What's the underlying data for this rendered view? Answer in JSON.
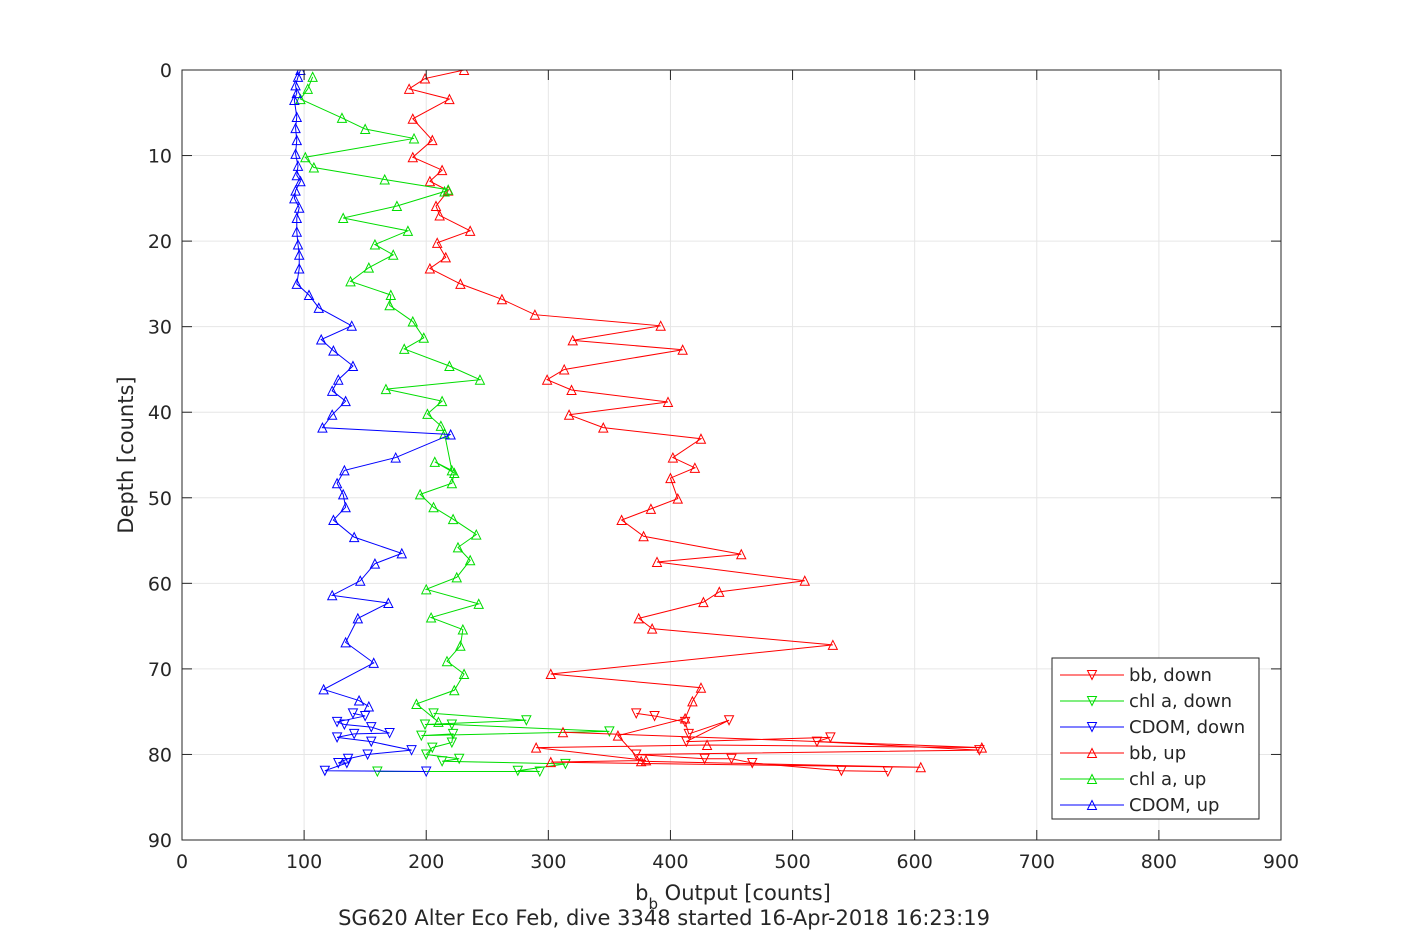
{
  "chart_data": {
    "type": "line",
    "title": "",
    "xlabel": "b_b Output [counts]",
    "xlabel_main": "b",
    "xlabel_sub": "b",
    "xlabel_rest": " Output [counts]",
    "ylabel": "Depth [counts]",
    "caption": "SG620 Alter Eco Feb, dive 3348 started 16-Apr-2018 16:23:19",
    "xlim": [
      0,
      900
    ],
    "ylim": [
      0,
      90
    ],
    "y_reversed": true,
    "grid": true,
    "legend_position": "bottom-right",
    "x_ticks": [
      "0",
      "100",
      "200",
      "300",
      "400",
      "500",
      "600",
      "700",
      "800",
      "900"
    ],
    "y_ticks": [
      "0",
      "10",
      "20",
      "30",
      "40",
      "50",
      "60",
      "70",
      "80",
      "90"
    ],
    "series": [
      {
        "name": "bb, down",
        "color": "#ff0000",
        "marker": "triangle-down",
        "x": [
          372,
          387,
          412,
          415,
          448,
          413,
          531,
          520,
          653,
          372,
          428,
          450,
          467,
          540,
          578
        ],
        "y": [
          75.2,
          75.5,
          76.2,
          77.6,
          76.0,
          78.5,
          78.0,
          78.5,
          79.5,
          80.0,
          80.5,
          80.5,
          81.0,
          81.9,
          82.0
        ]
      },
      {
        "name": "chl a, down",
        "color": "#00dd00",
        "marker": "triangle-down",
        "x": [
          206,
          282,
          199,
          221,
          350,
          196,
          222,
          221,
          205,
          200,
          227,
          213,
          314,
          275,
          293,
          160
        ],
        "y": [
          75.2,
          76.0,
          76.5,
          76.5,
          77.3,
          77.8,
          77.6,
          78.6,
          79.2,
          80.0,
          80.5,
          80.8,
          81.1,
          81.9,
          82.0,
          82.0
        ]
      },
      {
        "name": "CDOM, down",
        "color": "#0000ff",
        "marker": "triangle-down",
        "x": [
          140,
          150,
          127,
          133,
          155,
          170,
          141,
          127,
          155,
          188,
          152,
          136,
          128,
          135,
          117,
          200
        ],
        "y": [
          75.2,
          75.5,
          76.2,
          76.5,
          76.8,
          77.5,
          77.6,
          78.0,
          78.5,
          79.5,
          80.0,
          80.5,
          81.0,
          81.0,
          81.9,
          82.0
        ]
      },
      {
        "name": "bb, up",
        "color": "#ff0000",
        "marker": "triangle-up",
        "x": [
          231,
          199,
          186,
          219,
          189,
          205,
          189,
          213,
          203,
          218,
          208,
          211,
          236,
          209,
          216,
          203,
          228,
          262,
          289,
          392,
          320,
          410,
          313,
          299,
          319,
          398,
          317,
          345,
          425,
          402,
          420,
          400,
          406,
          384,
          360,
          378,
          458,
          389,
          510,
          440,
          427,
          374,
          385,
          533,
          302,
          425,
          418,
          412,
          357,
          376,
          605,
          302,
          380,
          290,
          430,
          655,
          312
        ],
        "y": [
          0,
          1.0,
          2.2,
          3.4,
          5.7,
          8.2,
          10.2,
          11.7,
          13.0,
          14.1,
          15.9,
          17.0,
          18.8,
          20.2,
          21.9,
          23.2,
          25.0,
          26.8,
          28.6,
          29.9,
          31.6,
          32.7,
          35.0,
          36.2,
          37.4,
          38.8,
          40.3,
          41.8,
          43.1,
          45.3,
          46.5,
          47.7,
          50.1,
          51.3,
          52.6,
          54.5,
          56.6,
          57.5,
          59.7,
          61.0,
          62.2,
          64.1,
          65.3,
          67.2,
          70.6,
          72.2,
          73.8,
          75.8,
          77.8,
          80.8,
          81.5,
          80.9,
          80.7,
          79.2,
          78.9,
          79.2,
          77.4
        ]
      },
      {
        "name": "chl a, up",
        "color": "#00dd00",
        "marker": "triangle-up",
        "x": [
          107,
          103,
          97,
          131,
          150,
          190,
          101,
          108,
          166,
          218,
          215,
          176,
          132,
          185,
          158,
          173,
          153,
          138,
          171,
          170,
          189,
          198,
          182,
          219,
          244,
          167,
          213,
          201,
          212,
          215,
          221,
          207,
          223,
          221,
          195,
          206,
          222,
          241,
          226,
          236,
          225,
          200,
          243,
          204,
          230,
          228,
          217,
          231,
          223,
          192,
          210
        ],
        "y": [
          0.8,
          2.2,
          3.4,
          5.6,
          6.9,
          8.0,
          10.2,
          11.4,
          12.8,
          14.0,
          14.2,
          15.9,
          17.3,
          18.8,
          20.4,
          21.6,
          23.1,
          24.7,
          26.3,
          27.5,
          29.4,
          31.3,
          32.6,
          34.6,
          36.2,
          37.3,
          38.7,
          40.2,
          41.6,
          42.5,
          46.8,
          45.8,
          47.1,
          48.3,
          49.6,
          51.1,
          52.5,
          54.3,
          55.8,
          57.3,
          59.3,
          60.7,
          62.4,
          64.0,
          65.4,
          67.3,
          69.1,
          70.6,
          72.5,
          74.1,
          76.2
        ]
      },
      {
        "name": "CDOM, up",
        "color": "#0000ff",
        "marker": "triangle-up",
        "x": [
          97,
          95,
          93,
          94,
          92,
          94,
          93,
          94,
          93,
          95,
          94,
          97,
          93,
          92,
          96,
          94,
          94,
          95,
          96,
          96,
          94,
          104,
          112,
          139,
          114,
          124,
          140,
          128,
          123,
          134,
          123,
          115,
          220,
          175,
          133,
          127,
          132,
          134,
          124,
          141,
          180,
          158,
          146,
          123,
          169,
          144,
          134,
          157,
          116,
          145,
          153
        ],
        "y": [
          0,
          0.8,
          1.8,
          2.7,
          3.5,
          5.5,
          6.8,
          8.2,
          9.8,
          11.2,
          12.3,
          13.0,
          14.1,
          15.0,
          16.1,
          17.3,
          18.9,
          20.4,
          21.6,
          23.2,
          25.0,
          26.3,
          27.8,
          29.9,
          31.5,
          32.8,
          34.6,
          36.2,
          37.5,
          38.7,
          40.3,
          41.8,
          42.6,
          45.3,
          46.8,
          48.3,
          49.6,
          51.1,
          52.6,
          54.6,
          56.5,
          57.7,
          59.7,
          61.4,
          62.3,
          64.1,
          66.9,
          69.3,
          72.4,
          73.7,
          74.4
        ]
      }
    ],
    "legend": [
      "bb, down",
      "chl a, down",
      "CDOM, down",
      "bb, up",
      "chl a, up",
      "CDOM, up"
    ]
  }
}
